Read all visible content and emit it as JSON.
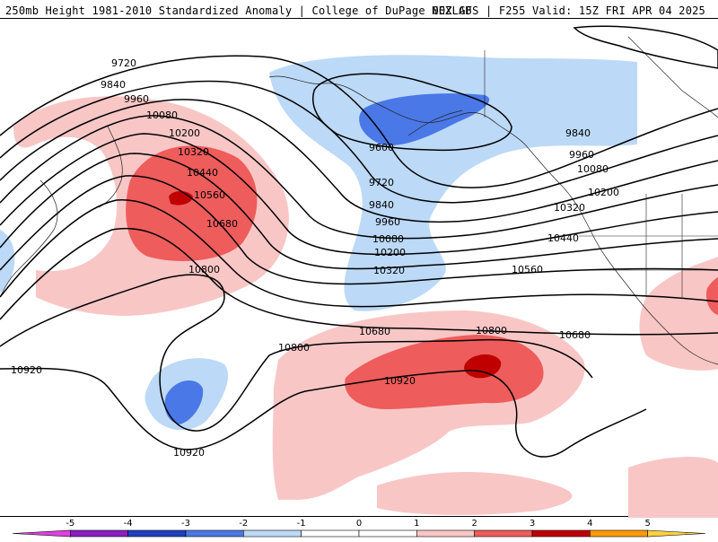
{
  "header": {
    "title_left": "250mb Height 1981-2010 Standardized Anomaly | College of DuPage NEXLAB",
    "title_right": "00Z GFS | F255 Valid: 15Z FRI APR 04 2025"
  },
  "contour_labels": [
    {
      "text": "9720"
    },
    {
      "text": "9840"
    },
    {
      "text": "9960"
    },
    {
      "text": "10080"
    },
    {
      "text": "10200"
    },
    {
      "text": "10320"
    },
    {
      "text": "10440"
    },
    {
      "text": "10560"
    },
    {
      "text": "10680"
    },
    {
      "text": "10800"
    },
    {
      "text": "10800"
    },
    {
      "text": "10920"
    },
    {
      "text": "10920"
    },
    {
      "text": "9600"
    },
    {
      "text": "9720"
    },
    {
      "text": "9840"
    },
    {
      "text": "9960"
    },
    {
      "text": "10080"
    },
    {
      "text": "10200"
    },
    {
      "text": "10320"
    },
    {
      "text": "9840"
    },
    {
      "text": "9960"
    },
    {
      "text": "10080"
    },
    {
      "text": "10200"
    },
    {
      "text": "10320"
    },
    {
      "text": "10440"
    },
    {
      "text": "10560"
    },
    {
      "text": "10680"
    },
    {
      "text": "10680"
    },
    {
      "text": "10800"
    },
    {
      "text": "10920"
    }
  ],
  "colorbar": {
    "ticks": [
      "-5",
      "-4",
      "-3",
      "-2",
      "-1",
      "0",
      "1",
      "2",
      "3",
      "4",
      "5"
    ],
    "colors": [
      "#e040e0",
      "#8a1fbf",
      "#1f3fbf",
      "#4a78e6",
      "#bcd9f7",
      "#ffffff",
      "#ffffff",
      "#f9c6c6",
      "#ee5c5c",
      "#c00000",
      "#ff9a00",
      "#ffd040"
    ]
  }
}
